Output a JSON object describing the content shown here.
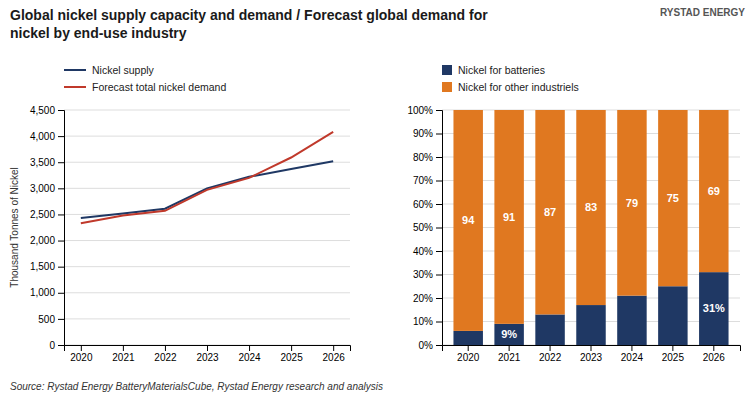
{
  "title": "Global nickel supply capacity and demand / Forecast global demand for\nnickel by end-use industry",
  "annotations": [
    "RYSTAD ENERGY",
    "Source: Rystad Energy BatteryMaterialsCube, Rystad Energy research and analysis"
  ],
  "chart_data": [
    {
      "type": "line",
      "y_label": "Thousand Tonnes of Nickel",
      "x": [
        2020,
        2021,
        2022,
        2023,
        2024,
        2025,
        2026
      ],
      "xlim": [
        2019.6,
        2026.4
      ],
      "xticks": [
        2020,
        2021,
        2022,
        2023,
        2024,
        2025,
        2026
      ],
      "ylim": [
        0,
        4500
      ],
      "yticks": [
        0,
        500,
        {
          "value": 1000,
          "label": "1,000"
        },
        {
          "value": 1500,
          "label": "1,500"
        },
        {
          "value": 2000,
          "label": "2,000"
        },
        {
          "value": 2500,
          "label": "2,500"
        },
        {
          "value": 3000,
          "label": "3,000"
        },
        {
          "value": 3500,
          "label": "3,500"
        },
        {
          "value": 4000,
          "label": "4,000"
        },
        {
          "value": 4500,
          "label": "4,500"
        }
      ],
      "grid": true,
      "legend": "top",
      "series": [
        {
          "name": "Nickel supply",
          "color": "#1f3864",
          "values": [
            2430,
            2520,
            2610,
            3000,
            3220,
            3370,
            3520
          ]
        },
        {
          "name": "Forecast total nickel demand",
          "color": "#c0392b",
          "values": [
            2330,
            2480,
            2570,
            2970,
            3200,
            3590,
            4080
          ]
        }
      ]
    },
    {
      "type": "bar",
      "stacked": true,
      "categories": [
        "2020",
        "2021",
        "2022",
        "2023",
        "2024",
        "2025",
        "2026"
      ],
      "ylim": [
        0,
        100
      ],
      "yticks": [
        {
          "value": 0,
          "label": "0%"
        },
        {
          "value": 10,
          "label": "10%"
        },
        {
          "value": 20,
          "label": "20%"
        },
        {
          "value": 30,
          "label": "30%"
        },
        {
          "value": 40,
          "label": "40%"
        },
        {
          "value": 50,
          "label": "50%"
        },
        {
          "value": 60,
          "label": "60%"
        },
        {
          "value": 70,
          "label": "70%"
        },
        {
          "value": 80,
          "label": "80%"
        },
        {
          "value": 90,
          "label": "90%"
        },
        {
          "value": 100,
          "label": "100%"
        }
      ],
      "grid": true,
      "legend": "top",
      "data_labels": true,
      "series": [
        {
          "name": "Nickel for batteries",
          "color": "#1f3864",
          "values": [
            6,
            9,
            13,
            17,
            21,
            25,
            31
          ],
          "value_labels": [
            null,
            "9%",
            null,
            null,
            null,
            null,
            "31%"
          ]
        },
        {
          "name": "Nickel for other industriels",
          "color": "#e07820",
          "values": [
            94,
            91,
            87,
            83,
            79,
            75,
            69
          ]
        }
      ]
    }
  ]
}
